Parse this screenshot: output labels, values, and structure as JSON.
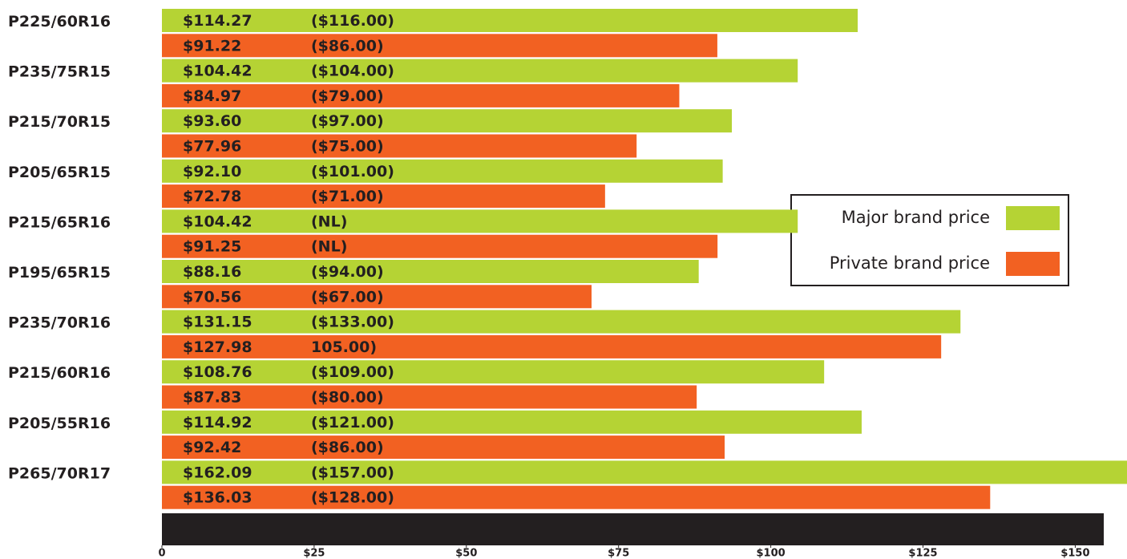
{
  "chart_data": {
    "type": "bar",
    "orientation": "horizontal",
    "categories": [
      "P225/60R16",
      "P235/75R15",
      "P215/70R15",
      "P205/65R15",
      "P215/65R16",
      "P195/65R15",
      "P235/70R16",
      "P215/60R16",
      "P205/55R16",
      "P265/70R17"
    ],
    "series": [
      {
        "name": "Major brand price",
        "color": "#b5d334",
        "values": [
          114.27,
          104.42,
          93.6,
          92.1,
          104.42,
          88.16,
          131.15,
          108.76,
          114.92,
          162.09
        ],
        "value_labels": [
          "$114.27",
          "$104.42",
          "$93.60",
          "$92.10",
          "$104.42",
          "$88.16",
          "$131.15",
          "$108.76",
          "$114.92",
          "$162.09"
        ],
        "paren_labels": [
          "($116.00)",
          "($104.00)",
          "($97.00)",
          "($101.00)",
          "(NL)",
          "($94.00)",
          "($133.00)",
          "($109.00)",
          "($121.00)",
          "($157.00)"
        ]
      },
      {
        "name": "Private brand price",
        "color": "#f26122",
        "values": [
          91.22,
          84.97,
          77.96,
          72.78,
          91.25,
          70.56,
          127.98,
          87.83,
          92.42,
          136.03
        ],
        "value_labels": [
          "$91.22",
          "$84.97",
          "$77.96",
          "$72.78",
          "$91.25",
          "$70.56",
          "$127.98",
          "$87.83",
          "$92.42",
          "$136.03"
        ],
        "paren_labels": [
          "($86.00)",
          "($79.00)",
          "($75.00)",
          "($71.00)",
          "(NL)",
          "($67.00)",
          "105.00)",
          "($80.00)",
          "($86.00)",
          "($128.00)"
        ]
      }
    ],
    "xlim": [
      0,
      158.5
    ],
    "xticks": [
      0,
      {
        "value": 25,
        "label": "$25"
      },
      {
        "value": 50,
        "label": "$50"
      },
      {
        "value": 75,
        "label": "$75"
      },
      {
        "value": 100,
        "label": "$100"
      },
      {
        "value": 125,
        "label": "$125"
      },
      {
        "value": 150,
        "label": "$150"
      }
    ],
    "legend": "right"
  }
}
